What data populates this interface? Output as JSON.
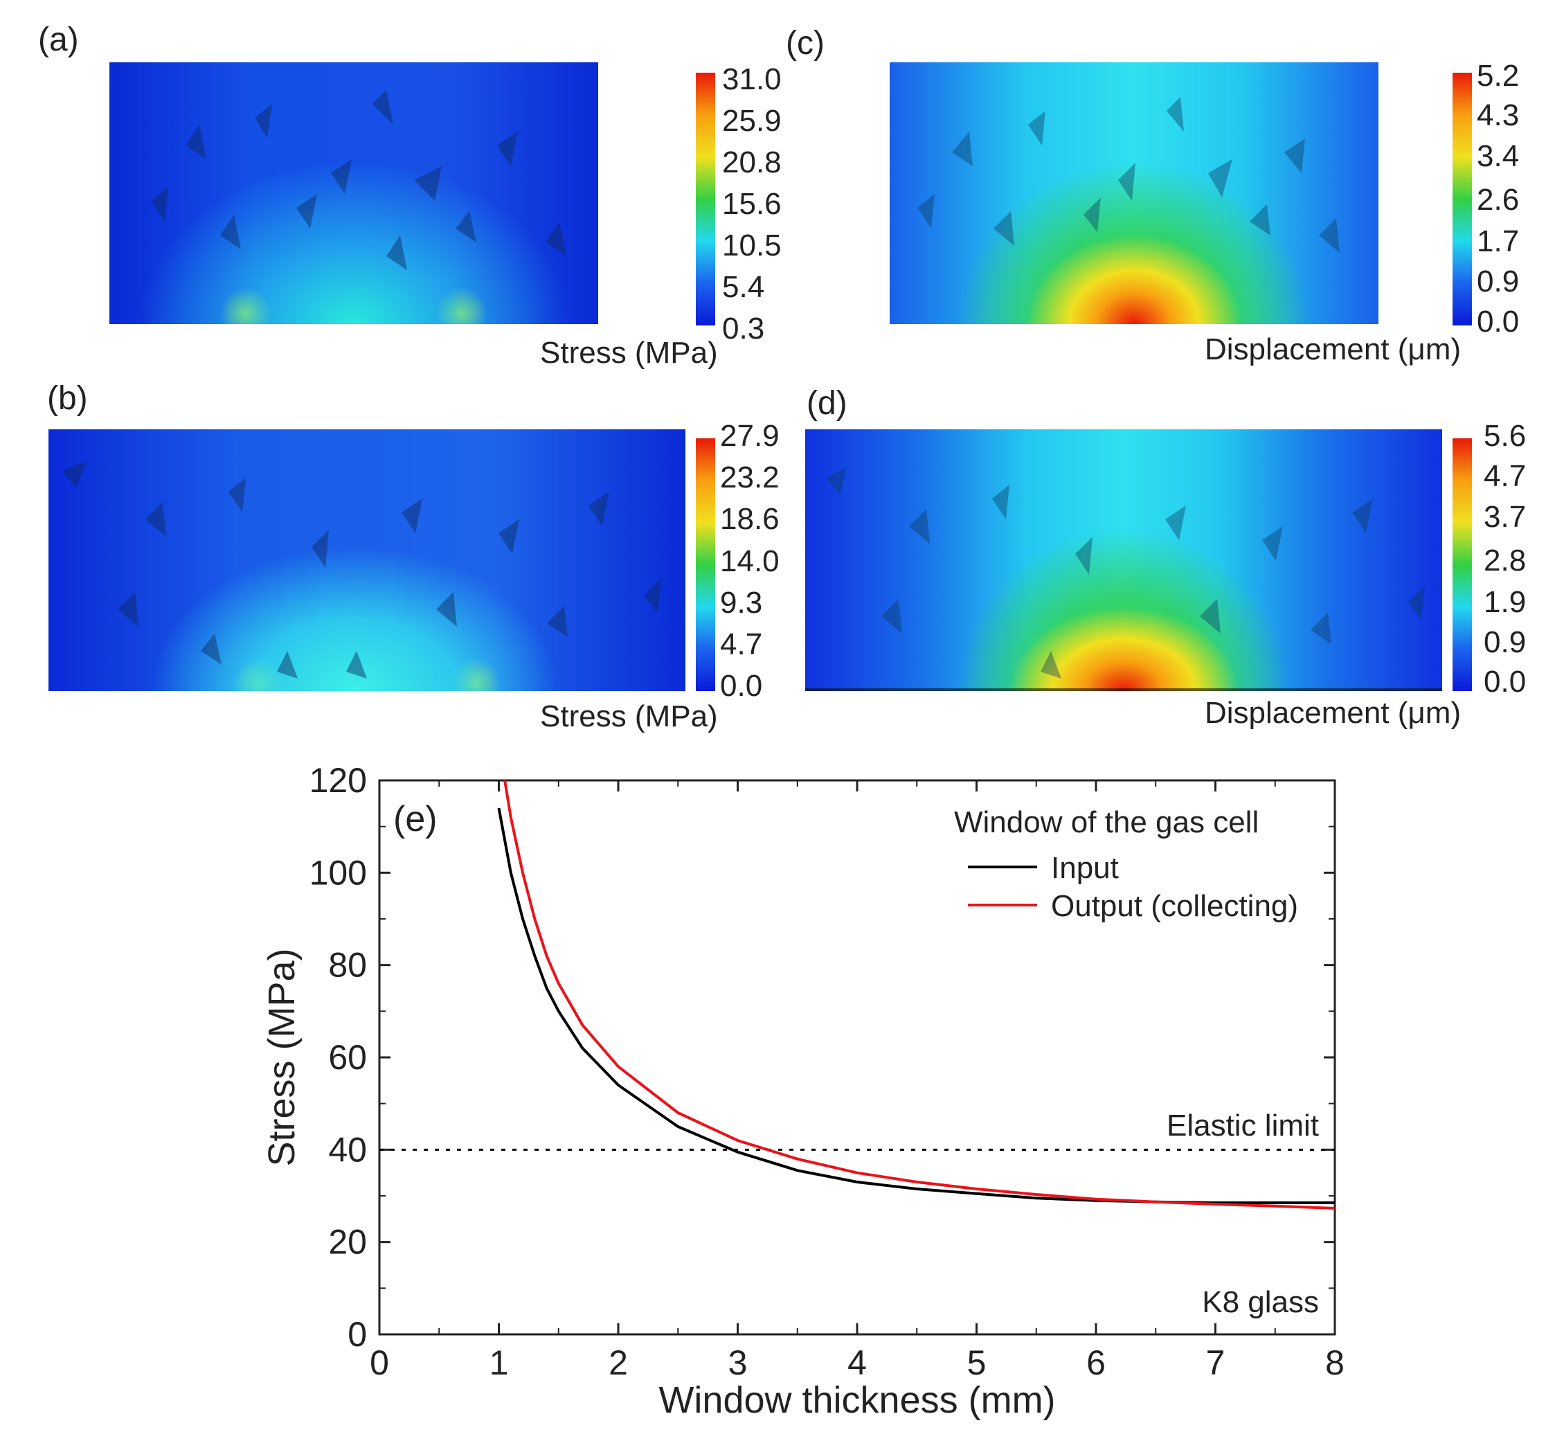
{
  "panels": {
    "a": {
      "label": "(a)",
      "cbar_title": "Stress (MPa)",
      "ticks": [
        "31.0",
        "25.9",
        "20.8",
        "15.6",
        "10.5",
        "5.4",
        "0.3"
      ]
    },
    "b": {
      "label": "(b)",
      "cbar_title": "Stress (MPa)",
      "ticks": [
        "27.9",
        "23.2",
        "18.6",
        "14.0",
        "9.3",
        "4.7",
        "0.0"
      ]
    },
    "c": {
      "label": "(c)",
      "cbar_title": "Displacement (μm)",
      "ticks": [
        "5.2",
        "4.3",
        "3.4",
        "2.6",
        "1.7",
        "0.9",
        "0.0"
      ]
    },
    "d": {
      "label": "(d)",
      "cbar_title": "Displacement (μm)",
      "ticks": [
        "5.6",
        "4.7",
        "3.7",
        "2.8",
        "1.9",
        "0.9",
        "0.0"
      ]
    }
  },
  "colors": {
    "black_series": "#000000",
    "red_series": "#e8141b",
    "colormap": [
      "#0a1ad8",
      "#1c64ee",
      "#22d8ee",
      "#33d044",
      "#f0e020",
      "#f8a010",
      "#e81808"
    ]
  },
  "chart_data": {
    "type": "line",
    "panel_label": "(e)",
    "xlabel": "Window thickness (mm)",
    "ylabel": "Stress (MPa)",
    "xlim": [
      0,
      8
    ],
    "ylim": [
      0,
      120
    ],
    "xticks": [
      "0",
      "1",
      "2",
      "3",
      "4",
      "5",
      "6",
      "7",
      "8"
    ],
    "yticks": [
      "0",
      "20",
      "40",
      "60",
      "80",
      "100",
      "120"
    ],
    "legend_title": "Window of the gas cell",
    "legend_position": "top-right",
    "series": [
      {
        "name": "Input",
        "color": "#000000",
        "x": [
          1.0,
          1.1,
          1.2,
          1.3,
          1.4,
          1.5,
          1.7,
          2.0,
          2.5,
          3.0,
          3.5,
          4.0,
          4.5,
          5.0,
          5.5,
          6.0,
          6.5,
          7.0,
          7.5,
          8.0
        ],
        "y": [
          114,
          100,
          90,
          82,
          75,
          70,
          62,
          54,
          45,
          39.5,
          35.5,
          33,
          31.5,
          30.5,
          29.5,
          29,
          28.7,
          28.5,
          28.5,
          28.5
        ]
      },
      {
        "name": "Output (collecting)",
        "color": "#e8141b",
        "x": [
          1.05,
          1.1,
          1.2,
          1.3,
          1.4,
          1.5,
          1.7,
          2.0,
          2.5,
          3.0,
          3.5,
          4.0,
          4.5,
          5.0,
          5.5,
          6.0,
          6.5,
          7.0,
          7.5,
          8.0
        ],
        "y": [
          120,
          112,
          100,
          90,
          82,
          76,
          67,
          58,
          48,
          42,
          38,
          35,
          33,
          31.5,
          30.3,
          29.3,
          28.7,
          28.2,
          27.8,
          27.3
        ]
      }
    ],
    "reference_line": {
      "y": 40,
      "style": "dotted",
      "label": "Elastic limit"
    },
    "annotation": "K8 glass"
  }
}
